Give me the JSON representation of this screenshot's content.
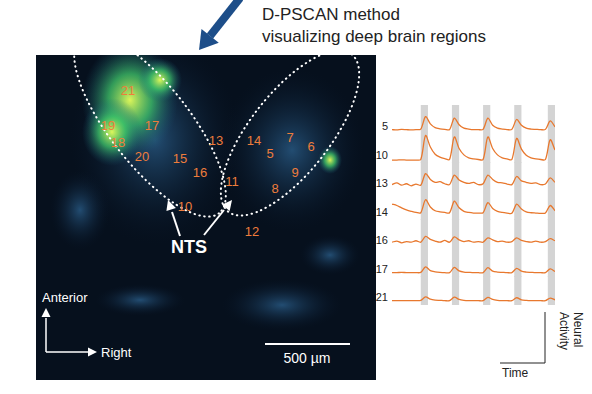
{
  "header": {
    "lines": [
      "D-PSCAN method",
      "visualizing deep brain regions"
    ]
  },
  "image": {
    "cell_labels": [
      "21",
      "19",
      "17",
      "18",
      "20",
      "13",
      "15",
      "16",
      "10",
      "14",
      "7",
      "5",
      "6",
      "9",
      "11",
      "8",
      "12"
    ],
    "region_label": "NTS",
    "orientation": {
      "up": "Anterior",
      "right": "Right"
    },
    "scale_bar": "500 µm"
  },
  "chart_data": {
    "type": "line",
    "x_label": "Time",
    "y_label": "Neural Activity",
    "tick_labels": false,
    "grid": false,
    "xlim": [
      0,
      34
    ],
    "ylim": [
      0,
      1
    ],
    "stimuli": [
      6,
      12.5,
      19,
      25.5,
      32.5
    ],
    "stimulus_duration": 1.5,
    "x": [
      0,
      1,
      2,
      3,
      4,
      5,
      6,
      7,
      8,
      9,
      10,
      11,
      12,
      13,
      14,
      15,
      16,
      17,
      18,
      19,
      20,
      21,
      22,
      23,
      24,
      25,
      26,
      27,
      28,
      29,
      30,
      31,
      32,
      33,
      34
    ],
    "series": [
      {
        "name": "5",
        "color": "#e8782e",
        "values": [
          0.15,
          0.14,
          0.16,
          0.15,
          0.14,
          0.15,
          0.17,
          0.6,
          0.35,
          0.22,
          0.18,
          0.16,
          0.15,
          0.55,
          0.32,
          0.2,
          0.17,
          0.15,
          0.15,
          0.16,
          0.55,
          0.3,
          0.2,
          0.17,
          0.15,
          0.16,
          0.5,
          0.3,
          0.2,
          0.17,
          0.16,
          0.15,
          0.16,
          0.45,
          0.25
        ]
      },
      {
        "name": "10",
        "color": "#e8782e",
        "values": [
          0.1,
          0.1,
          0.11,
          0.1,
          0.1,
          0.1,
          0.12,
          0.95,
          0.55,
          0.3,
          0.2,
          0.15,
          0.12,
          0.9,
          0.5,
          0.28,
          0.18,
          0.14,
          0.12,
          0.12,
          0.9,
          0.5,
          0.28,
          0.18,
          0.14,
          0.12,
          0.85,
          0.48,
          0.27,
          0.18,
          0.14,
          0.12,
          0.12,
          0.8,
          0.45
        ]
      },
      {
        "name": "13",
        "color": "#e8782e",
        "values": [
          0.22,
          0.28,
          0.2,
          0.25,
          0.18,
          0.24,
          0.2,
          0.6,
          0.4,
          0.3,
          0.32,
          0.25,
          0.22,
          0.55,
          0.38,
          0.3,
          0.26,
          0.3,
          0.22,
          0.25,
          0.55,
          0.4,
          0.3,
          0.28,
          0.24,
          0.22,
          0.5,
          0.35,
          0.3,
          0.26,
          0.28,
          0.22,
          0.24,
          0.45,
          0.3
        ]
      },
      {
        "name": "14",
        "color": "#e8782e",
        "values": [
          0.55,
          0.5,
          0.42,
          0.35,
          0.3,
          0.26,
          0.25,
          0.7,
          0.45,
          0.32,
          0.28,
          0.26,
          0.25,
          0.65,
          0.42,
          0.3,
          0.26,
          0.24,
          0.24,
          0.25,
          0.6,
          0.4,
          0.3,
          0.26,
          0.24,
          0.23,
          0.55,
          0.38,
          0.28,
          0.25,
          0.24,
          0.23,
          0.24,
          0.5,
          0.32
        ]
      },
      {
        "name": "16",
        "color": "#e8782e",
        "values": [
          0.2,
          0.24,
          0.18,
          0.22,
          0.2,
          0.25,
          0.2,
          0.4,
          0.3,
          0.24,
          0.2,
          0.26,
          0.2,
          0.38,
          0.28,
          0.22,
          0.25,
          0.2,
          0.22,
          0.2,
          0.35,
          0.28,
          0.22,
          0.24,
          0.2,
          0.22,
          0.35,
          0.26,
          0.22,
          0.2,
          0.24,
          0.2,
          0.22,
          0.32,
          0.25
        ]
      },
      {
        "name": "17",
        "color": "#e8782e",
        "values": [
          0.15,
          0.15,
          0.16,
          0.15,
          0.15,
          0.15,
          0.16,
          0.35,
          0.22,
          0.18,
          0.16,
          0.15,
          0.15,
          0.33,
          0.21,
          0.17,
          0.16,
          0.15,
          0.15,
          0.15,
          0.32,
          0.2,
          0.17,
          0.16,
          0.15,
          0.15,
          0.3,
          0.2,
          0.17,
          0.16,
          0.15,
          0.15,
          0.15,
          0.28,
          0.19
        ]
      },
      {
        "name": "21",
        "color": "#e8782e",
        "values": [
          0.15,
          0.15,
          0.15,
          0.15,
          0.15,
          0.15,
          0.16,
          0.28,
          0.2,
          0.17,
          0.16,
          0.15,
          0.15,
          0.27,
          0.19,
          0.16,
          0.15,
          0.15,
          0.15,
          0.15,
          0.26,
          0.19,
          0.16,
          0.15,
          0.15,
          0.15,
          0.25,
          0.18,
          0.16,
          0.15,
          0.15,
          0.15,
          0.15,
          0.24,
          0.18
        ]
      }
    ]
  }
}
